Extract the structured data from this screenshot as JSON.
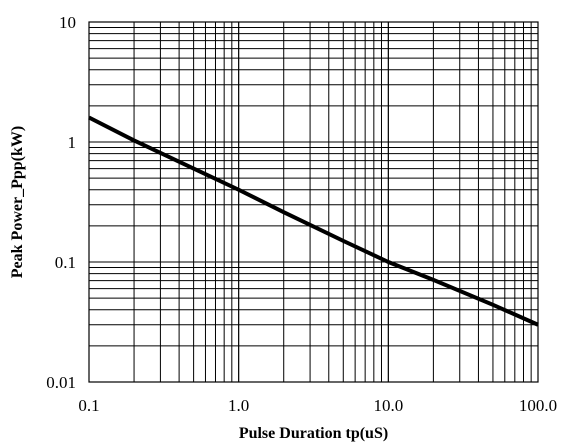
{
  "chart_data": {
    "type": "line",
    "title": "",
    "xlabel": "Pulse Duration  tp(uS)",
    "ylabel": "Peak  Power_Ppp(kW)",
    "x_scale": "log",
    "y_scale": "log",
    "xlim": [
      0.1,
      100.0
    ],
    "ylim": [
      0.01,
      10
    ],
    "grid": true,
    "legend": "none",
    "x_ticks": [
      0.1,
      1.0,
      10.0,
      100.0
    ],
    "x_tick_labels": [
      "0.1",
      "1.0",
      "10.0",
      "100.0"
    ],
    "y_ticks": [
      0.01,
      0.1,
      1,
      10
    ],
    "y_tick_labels": [
      "0.01",
      "0.1",
      "1",
      "10"
    ],
    "series": [
      {
        "x": [
          0.1,
          0.2,
          0.5,
          1.0,
          2.0,
          5.0,
          10.0,
          20.0,
          50.0,
          100.0
        ],
        "y": [
          1.6,
          1.03,
          0.6,
          0.4,
          0.26,
          0.15,
          0.1,
          0.071,
          0.044,
          0.03
        ],
        "color": "#000000"
      }
    ]
  }
}
